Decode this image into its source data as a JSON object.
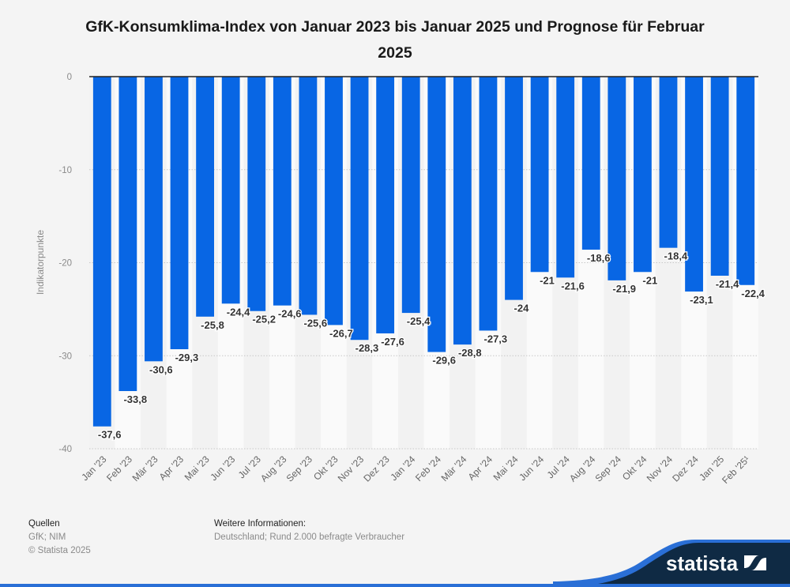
{
  "title": "GfK-Konsumklima-Index von Januar 2023 bis Januar 2025 und Prognose für Februar 2025",
  "footer": {
    "sources_heading": "Quellen",
    "sources": "GfK; NIM",
    "copyright": "© Statista 2025",
    "info_heading": "Weitere Informationen:",
    "info": "Deutschland; Rund 2.000 befragte Verbraucher"
  },
  "brand": {
    "name": "statista",
    "logo": "statista-logo-icon"
  },
  "colors": {
    "bar": "#0866e4",
    "background": "#f4f4f4",
    "brand_dark": "#0f2a44",
    "brand_accent": "#2a6fd6"
  },
  "chart_data": {
    "type": "bar",
    "title": "GfK-Konsumklima-Index von Januar 2023 bis Januar 2025 und Prognose für Februar 2025",
    "xlabel": "",
    "ylabel": "Indikatorpunkte",
    "ylim": [
      -40,
      0
    ],
    "yticks": [
      0,
      -10,
      -20,
      -30,
      -40
    ],
    "ytick_labels": [
      "0",
      "-10",
      "-20",
      "-30",
      "-40"
    ],
    "grid": true,
    "legend": "none",
    "categories": [
      "Jan '23",
      "Feb '23",
      "Mär '23",
      "Apr '23",
      "Mai '23",
      "Jun '23",
      "Jul '23",
      "Aug '23",
      "Sep '23",
      "Okt '23",
      "Nov '23",
      "Dez '23",
      "Jan '24",
      "Feb '24",
      "Mär '24",
      "Apr '24",
      "Mai '24",
      "Jun '24",
      "Jul '24",
      "Aug '24",
      "Sep '24",
      "Okt '24",
      "Nov '24",
      "Dez '24",
      "Jan '25",
      "Feb '25¹"
    ],
    "values": [
      -37.6,
      -33.8,
      -30.6,
      -29.3,
      -25.8,
      -24.4,
      -25.2,
      -24.6,
      -25.6,
      -26.7,
      -28.3,
      -27.6,
      -25.4,
      -29.6,
      -28.8,
      -27.3,
      -24,
      -21,
      -21.6,
      -18.6,
      -21.9,
      -21,
      -18.4,
      -23.1,
      -21.4,
      -22.4
    ],
    "value_labels": [
      "-37,6",
      "-33,8",
      "-30,6",
      "-29,3",
      "-25,8",
      "-24,4",
      "-25,2",
      "-24,6",
      "-25,6",
      "-26,7",
      "-28,3",
      "-27,6",
      "-25,4",
      "-29,6",
      "-28,8",
      "-27,3",
      "-24",
      "-21",
      "-21,6",
      "-18,6",
      "-21,9",
      "-21",
      "-18,4",
      "-23,1",
      "-21,4",
      "-22,4"
    ]
  }
}
